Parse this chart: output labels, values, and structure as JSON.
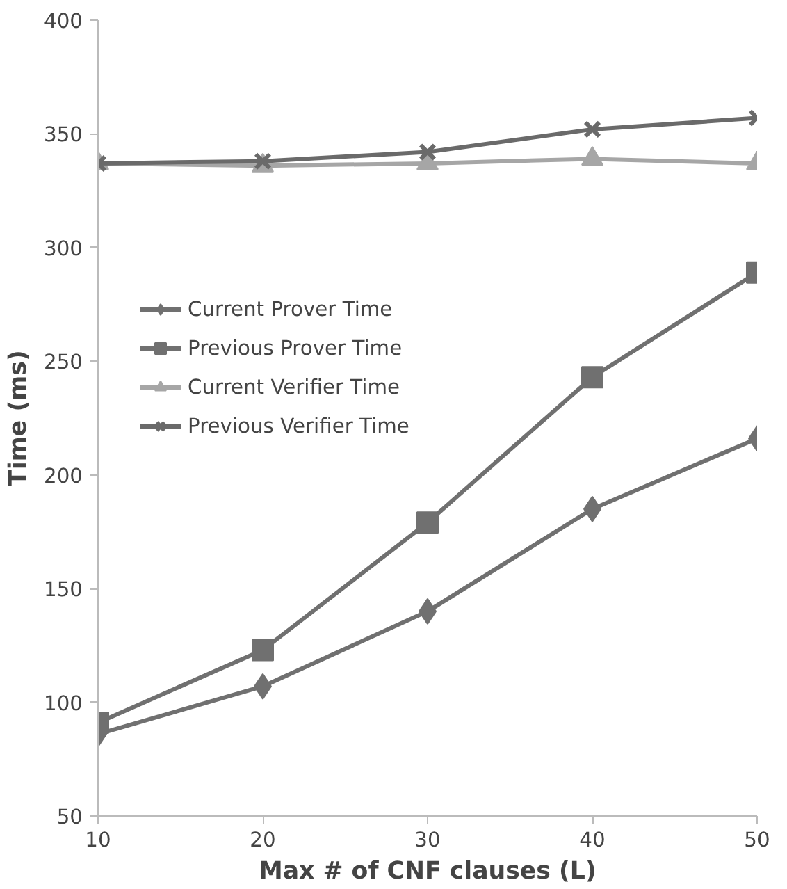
{
  "chart_data": {
    "type": "line",
    "xlabel": "Max # of CNF clauses (L)",
    "ylabel": "Time (ms)",
    "x": [
      10,
      20,
      30,
      40,
      50
    ],
    "xlim": [
      10,
      50
    ],
    "xticks": [
      10,
      20,
      30,
      40,
      50
    ],
    "ylim": [
      50,
      400
    ],
    "yticks": [
      50,
      100,
      150,
      200,
      250,
      300,
      350,
      400
    ],
    "grid": false,
    "legend": "left",
    "series": [
      {
        "name": "Current Prover Time",
        "color": "#707070",
        "marker": "diamond",
        "values": [
          86,
          107,
          140,
          185,
          216
        ]
      },
      {
        "name": "Previous Prover Time",
        "color": "#707070",
        "marker": "square",
        "values": [
          91,
          123,
          179,
          243,
          289
        ]
      },
      {
        "name": "Current Verifier Time",
        "color": "#a6a6a6",
        "marker": "triangle",
        "values": [
          337,
          336,
          337,
          339,
          337
        ]
      },
      {
        "name": "Previous Verifier Time",
        "color": "#6a6a6a",
        "marker": "x",
        "values": [
          337,
          338,
          342,
          352,
          357
        ]
      }
    ]
  }
}
